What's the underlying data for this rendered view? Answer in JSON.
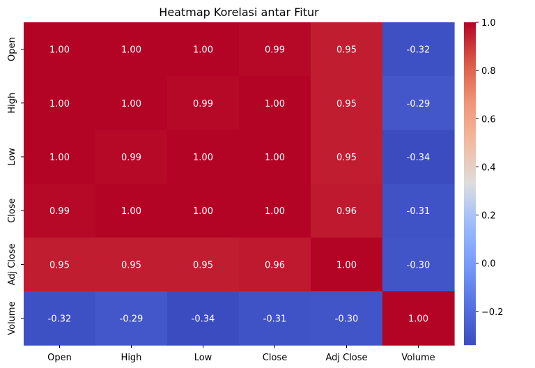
{
  "chart_data": {
    "type": "heatmap",
    "title": "Heatmap Korelasi antar Fitur",
    "xlabel": "",
    "ylabel": "",
    "x_categories": [
      "Open",
      "High",
      "Low",
      "Close",
      "Adj Close",
      "Volume"
    ],
    "y_categories": [
      "Open",
      "High",
      "Low",
      "Close",
      "Adj Close",
      "Volume"
    ],
    "values": [
      [
        1.0,
        1.0,
        1.0,
        0.99,
        0.95,
        -0.32
      ],
      [
        1.0,
        1.0,
        0.99,
        1.0,
        0.95,
        -0.29
      ],
      [
        1.0,
        0.99,
        1.0,
        1.0,
        0.95,
        -0.34
      ],
      [
        0.99,
        1.0,
        1.0,
        1.0,
        0.96,
        -0.31
      ],
      [
        0.95,
        0.95,
        0.95,
        0.96,
        1.0,
        -0.3
      ],
      [
        -0.32,
        -0.29,
        -0.34,
        -0.31,
        -0.3,
        1.0
      ]
    ],
    "annotation_format": "0.00",
    "colormap": "coolwarm",
    "color_range": [
      -0.34,
      1.0
    ],
    "colorbar_ticks": [
      1.0,
      0.8,
      0.6,
      0.4,
      0.2,
      0.0,
      -0.2
    ],
    "colorbar_tick_labels": [
      "1.0",
      "0.8",
      "0.6",
      "0.4",
      "0.2",
      "0.0",
      "−0.2"
    ],
    "grid": false,
    "legend": "colorbar-right"
  }
}
